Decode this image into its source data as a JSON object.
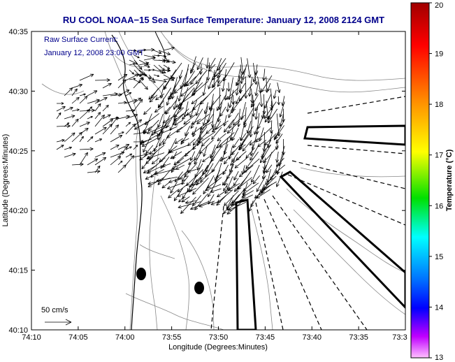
{
  "title": "RU COOL  NOAA−15  Sea Surface Temperature:  January 12, 2008 2124 GMT",
  "annotation": {
    "line1": "Raw Surface Current:",
    "line2": "January 12, 2008 23:00 GMT"
  },
  "scale_label": "50 cm/s",
  "x_axis": {
    "label": "Longitude (Degrees:Minutes)",
    "ticks": [
      "74:10",
      "74:05",
      "74:00",
      "73:55",
      "73:50",
      "73:45",
      "73:40",
      "73:35",
      "73:3"
    ]
  },
  "y_axis": {
    "label": "Latitude (Degrees:Minutes)",
    "ticks": [
      "40:35",
      "40:30",
      "40:25",
      "40:20",
      "40:15",
      "40:10"
    ]
  },
  "colorbar": {
    "label": "Temperature (°C)",
    "ticks": [
      "20",
      "19",
      "18",
      "17",
      "16",
      "15",
      "14",
      "13"
    ],
    "colors": [
      "#b00000",
      "#ff0000",
      "#ff8000",
      "#ffff00",
      "#00ff00",
      "#00ffff",
      "#0060ff",
      "#0000ff",
      "#ff00ff",
      "#ffc0ff"
    ]
  }
}
